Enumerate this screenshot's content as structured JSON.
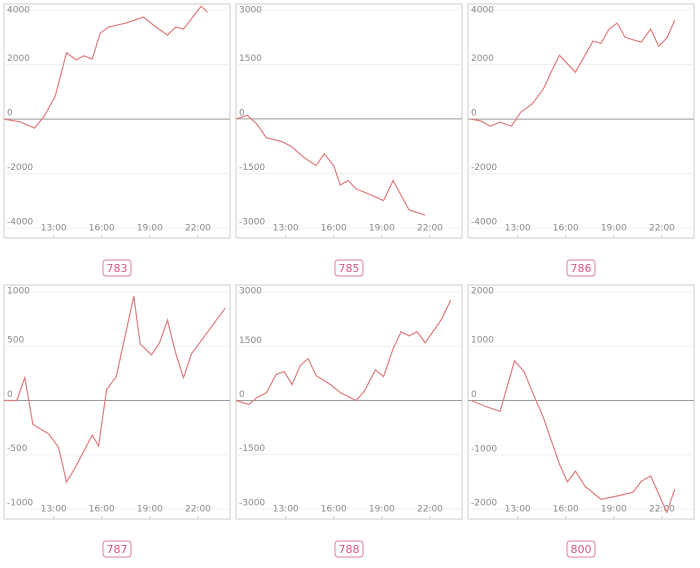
{
  "chart_data": [
    {
      "type": "line",
      "title": "783",
      "color": "#e07c7c",
      "xlim": [
        9.9,
        24.0
      ],
      "ylim": [
        -4360,
        4220
      ],
      "xticks": [
        {
          "value": 13,
          "label": "13:00"
        },
        {
          "value": 16,
          "label": "16:00"
        },
        {
          "value": 19,
          "label": "19:00"
        },
        {
          "value": 22,
          "label": "22:00"
        }
      ],
      "yticks": [
        -4000,
        -2000,
        0,
        2000,
        4000
      ],
      "x": [
        9.9,
        10.9,
        11.8,
        12.4,
        13.1,
        13.8,
        14.4,
        14.9,
        15.4,
        15.9,
        16.4,
        17.5,
        18.6,
        19.3,
        20.1,
        20.6,
        21.1,
        22.2,
        22.6
      ],
      "values": [
        0,
        -100,
        -330,
        100,
        850,
        2430,
        2170,
        2320,
        2200,
        3150,
        3370,
        3520,
        3740,
        3410,
        3080,
        3370,
        3300,
        4140,
        3920
      ]
    },
    {
      "type": "line",
      "title": "785",
      "color": "#e07c7c",
      "xlim": [
        9.9,
        24.0
      ],
      "ylim": [
        -3280,
        3165
      ],
      "xticks": [
        {
          "value": 13,
          "label": "13:00"
        },
        {
          "value": 16,
          "label": "16:00"
        },
        {
          "value": 19,
          "label": "19:00"
        },
        {
          "value": 22,
          "label": "22:00"
        }
      ],
      "yticks": [
        -3000,
        -1500,
        0,
        1500,
        3000
      ],
      "x": [
        9.9,
        10.6,
        11.2,
        11.8,
        12.8,
        13.4,
        14.1,
        14.9,
        15.4,
        16.0,
        16.4,
        16.9,
        17.4,
        18.2,
        19.1,
        19.7,
        20.7,
        21.7
      ],
      "values": [
        0,
        100,
        -140,
        -520,
        -630,
        -770,
        -1050,
        -1290,
        -960,
        -1290,
        -1820,
        -1700,
        -1930,
        -2070,
        -2250,
        -1700,
        -2510,
        -2650
      ]
    },
    {
      "type": "line",
      "title": "786",
      "color": "#e07c7c",
      "xlim": [
        9.9,
        24.0
      ],
      "ylim": [
        -4360,
        4220
      ],
      "xticks": [
        {
          "value": 13,
          "label": "13:00"
        },
        {
          "value": 16,
          "label": "16:00"
        },
        {
          "value": 19,
          "label": "19:00"
        },
        {
          "value": 22,
          "label": "22:00"
        }
      ],
      "yticks": [
        -4000,
        -2000,
        0,
        2000,
        4000
      ],
      "x": [
        10.1,
        10.7,
        11.3,
        11.9,
        12.6,
        13.2,
        13.9,
        14.6,
        15.2,
        15.6,
        16.6,
        17.2,
        17.7,
        18.2,
        18.7,
        19.2,
        19.7,
        20.7,
        21.3,
        21.8,
        22.3,
        22.8
      ],
      "values": [
        0,
        -70,
        -260,
        -110,
        -260,
        260,
        550,
        1100,
        1870,
        2340,
        1720,
        2340,
        2860,
        2780,
        3300,
        3520,
        3000,
        2820,
        3300,
        2670,
        2970,
        3630
      ]
    },
    {
      "type": "line",
      "title": "787",
      "color": "#e07c7c",
      "xlim": [
        9.9,
        24.0
      ],
      "ylim": [
        -1092,
        1064
      ],
      "xticks": [
        {
          "value": 13,
          "label": "13:00"
        },
        {
          "value": 16,
          "label": "16:00"
        },
        {
          "value": 19,
          "label": "19:00"
        },
        {
          "value": 22,
          "label": "22:00"
        }
      ],
      "yticks": [
        -1000,
        -500,
        0,
        500,
        1000
      ],
      "x": [
        9.9,
        10.7,
        11.2,
        11.7,
        12.7,
        13.3,
        13.8,
        14.3,
        15.4,
        15.8,
        16.3,
        16.9,
        18.0,
        18.4,
        19.1,
        19.6,
        20.1,
        20.6,
        21.1,
        21.6,
        23.7
      ],
      "values": [
        0,
        0,
        210,
        -220,
        -310,
        -430,
        -750,
        -630,
        -320,
        -420,
        100,
        220,
        960,
        520,
        420,
        530,
        740,
        440,
        210,
        430,
        850
      ]
    },
    {
      "type": "line",
      "title": "788",
      "color": "#e07c7c",
      "xlim": [
        9.9,
        24.0
      ],
      "ylim": [
        -3280,
        3196
      ],
      "xticks": [
        {
          "value": 13,
          "label": "13:00"
        },
        {
          "value": 16,
          "label": "16:00"
        },
        {
          "value": 19,
          "label": "19:00"
        },
        {
          "value": 22,
          "label": "22:00"
        }
      ],
      "yticks": [
        -3000,
        -1500,
        0,
        1500,
        3000
      ],
      "x": [
        9.9,
        10.7,
        11.2,
        11.8,
        12.4,
        12.9,
        13.4,
        13.9,
        14.4,
        14.9,
        15.8,
        16.4,
        17.4,
        17.9,
        18.6,
        19.1,
        19.7,
        20.2,
        20.7,
        21.2,
        21.7,
        22.7,
        23.3
      ],
      "values": [
        0,
        -110,
        80,
        220,
        720,
        800,
        440,
        960,
        1160,
        690,
        440,
        220,
        0,
        250,
        850,
        660,
        1430,
        1900,
        1790,
        1900,
        1600,
        2230,
        2780
      ]
    },
    {
      "type": "line",
      "title": "800",
      "color": "#e07c7c",
      "xlim": [
        9.9,
        24.0
      ],
      "ylim": [
        -2183,
        2128
      ],
      "xticks": [
        {
          "value": 13,
          "label": "13:00"
        },
        {
          "value": 16,
          "label": "16:00"
        },
        {
          "value": 19,
          "label": "19:00"
        },
        {
          "value": 22,
          "label": "22:00"
        }
      ],
      "yticks": [
        -2000,
        -1000,
        0,
        1000,
        2000
      ],
      "x": [
        10.1,
        11.0,
        11.9,
        12.8,
        13.4,
        13.9,
        14.6,
        15.6,
        16.1,
        16.6,
        17.2,
        18.2,
        19.2,
        20.2,
        20.7,
        21.3,
        22.3,
        22.8
      ],
      "values": [
        0,
        -110,
        -200,
        730,
        530,
        170,
        -310,
        -1170,
        -1500,
        -1300,
        -1580,
        -1820,
        -1760,
        -1690,
        -1490,
        -1390,
        -2060,
        -1630
      ]
    }
  ]
}
